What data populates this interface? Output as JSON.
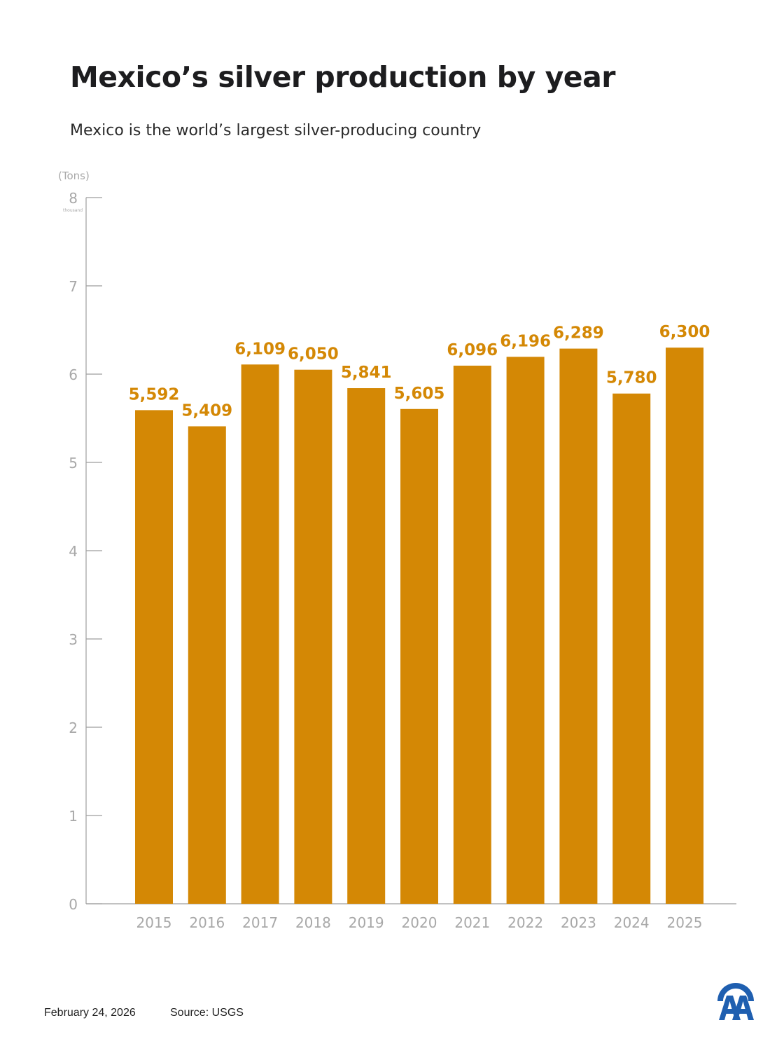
{
  "title": "Mexico’s silver production by year",
  "subtitle": "Mexico is the world’s largest silver-producing country",
  "footer": {
    "date": "February 24, 2026",
    "source": "Source: USGS"
  },
  "logo_icon": "aa-logo-icon",
  "colors": {
    "bar": "#D48805",
    "label": "#D48805",
    "axis": "#9e9e9e",
    "tick_text": "#a8a8a8"
  },
  "chart_data": {
    "type": "bar",
    "unit_label": "(Tons)",
    "scale_label": "thousand",
    "categories": [
      "2015",
      "2016",
      "2017",
      "2018",
      "2019",
      "2020",
      "2021",
      "2022",
      "2023",
      "2024",
      "2025"
    ],
    "values": [
      5592,
      5409,
      6109,
      6050,
      5841,
      5605,
      6096,
      6196,
      6289,
      5780,
      6300
    ],
    "data_labels": [
      "5,592",
      "5,409",
      "6,109",
      "6,050",
      "5,841",
      "5,605",
      "6,096",
      "6,196",
      "6,289",
      "5,780",
      "6,300"
    ],
    "y_ticks": [
      "0",
      "1",
      "2",
      "3",
      "4",
      "5",
      "6",
      "7",
      "8"
    ],
    "ylim": [
      0,
      8000
    ],
    "grid": false,
    "legend": "none"
  }
}
